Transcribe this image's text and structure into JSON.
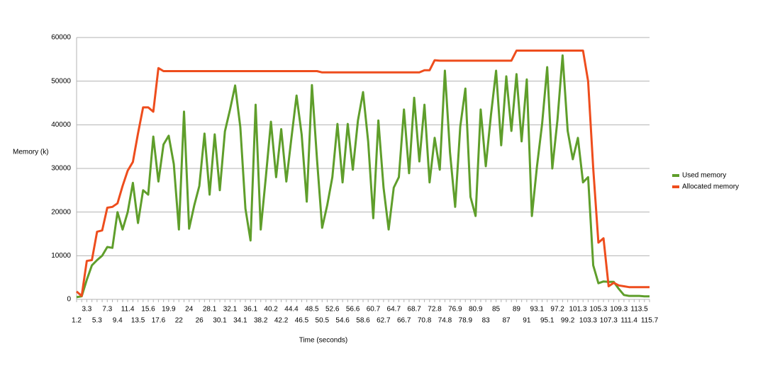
{
  "chart_data": {
    "type": "line",
    "y_label": "Memory (k)",
    "x_label": "Time (seconds)",
    "ylim": [
      0,
      60000
    ],
    "yticks": [
      0,
      10000,
      20000,
      30000,
      40000,
      50000,
      60000
    ],
    "grid": true,
    "legend": "right",
    "categories": [
      "1.2",
      null,
      "3.3",
      null,
      "5.3",
      null,
      "7.3",
      null,
      "9.4",
      null,
      "11.4",
      null,
      "13.5",
      null,
      "15.6",
      null,
      "17.6",
      null,
      "19.9",
      null,
      "22",
      null,
      "24",
      null,
      "26",
      null,
      "28.1",
      null,
      "30.1",
      null,
      "32.1",
      null,
      "34.1",
      null,
      "36.1",
      null,
      "38.2",
      null,
      "40.2",
      null,
      "42.2",
      null,
      "44.4",
      null,
      "46.5",
      null,
      "48.5",
      null,
      "50.5",
      null,
      "52.6",
      null,
      "54.6",
      null,
      "56.6",
      null,
      "58.6",
      null,
      "60.7",
      null,
      "62.7",
      null,
      "64.7",
      null,
      "66.7",
      null,
      "68.7",
      null,
      "70.8",
      null,
      "72.8",
      null,
      "74.8",
      null,
      "76.9",
      null,
      "78.9",
      null,
      "80.9",
      null,
      "83",
      null,
      "85",
      null,
      "87",
      null,
      "89",
      null,
      "91",
      null,
      "93.1",
      null,
      "95.1",
      null,
      "97.2",
      null,
      "99.2",
      null,
      "101.3",
      null,
      "103.3",
      null,
      "105.3",
      null,
      "107.3",
      null,
      "109.3",
      null,
      "111.4",
      null,
      "113.5",
      null,
      "115.7"
    ],
    "series": [
      {
        "name": "Used memory",
        "color": "#5f9e2b",
        "values": [
          500,
          700,
          4500,
          7800,
          9000,
          10000,
          12000,
          11800,
          20000,
          16000,
          20000,
          26700,
          17500,
          25000,
          24000,
          37300,
          27000,
          35500,
          37500,
          31000,
          16000,
          43000,
          16200,
          21500,
          26000,
          38000,
          24000,
          37800,
          25000,
          38500,
          43500,
          49000,
          39500,
          20800,
          13500,
          44600,
          16000,
          28000,
          40700,
          28000,
          39000,
          27000,
          37000,
          46700,
          37800,
          22400,
          49100,
          32000,
          16400,
          21600,
          28000,
          40200,
          26800,
          40200,
          29700,
          41000,
          47500,
          36200,
          18600,
          41000,
          25600,
          16000,
          25600,
          28000,
          43500,
          28900,
          46200,
          31600,
          44600,
          26800,
          37000,
          29700,
          52400,
          33700,
          21200,
          39600,
          48300,
          23500,
          19100,
          43500,
          30500,
          42300,
          52400,
          35300,
          51100,
          38600,
          51600,
          36200,
          50400,
          19100,
          30500,
          40200,
          53200,
          30000,
          41000,
          55900,
          38600,
          32100,
          37000,
          26800,
          28000,
          7800,
          3700,
          4100,
          4000,
          4000,
          2400,
          1000,
          800,
          800,
          800,
          700,
          700
        ]
      },
      {
        "name": "Allocated memory",
        "color": "#ee4d1d",
        "values": [
          1800,
          800,
          8800,
          9000,
          15500,
          15800,
          21000,
          21200,
          22000,
          26000,
          29500,
          31500,
          38000,
          44000,
          44000,
          43000,
          53000,
          52300,
          52300,
          52300,
          52300,
          52300,
          52300,
          52300,
          52300,
          52300,
          52300,
          52300,
          52300,
          52300,
          52300,
          52300,
          52300,
          52300,
          52300,
          52300,
          52300,
          52300,
          52300,
          52300,
          52300,
          52300,
          52300,
          52300,
          52300,
          52300,
          52300,
          52300,
          52000,
          52000,
          52000,
          52000,
          52000,
          52000,
          52000,
          52000,
          52000,
          52000,
          52000,
          52000,
          52000,
          52000,
          52000,
          52000,
          52000,
          52000,
          52000,
          52000,
          52500,
          52500,
          54800,
          54700,
          54700,
          54700,
          54700,
          54700,
          54700,
          54700,
          54700,
          54700,
          54700,
          54700,
          54700,
          54700,
          54700,
          54700,
          57000,
          57000,
          57000,
          57000,
          57000,
          57000,
          57000,
          57000,
          57000,
          57000,
          57000,
          57000,
          57000,
          57000,
          50000,
          30000,
          13000,
          14000,
          3000,
          3800,
          3200,
          3000,
          2800,
          2800,
          2800,
          2800,
          2800
        ]
      }
    ]
  }
}
